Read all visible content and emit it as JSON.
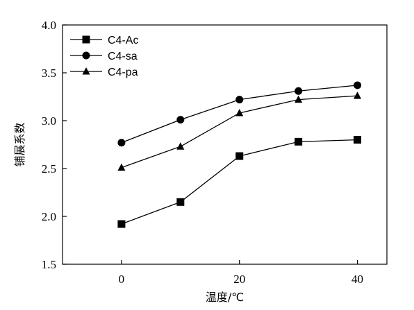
{
  "chart_data": {
    "type": "line",
    "title": "",
    "xlabel": "温度/℃",
    "ylabel": "铺展系数",
    "xlim": [
      -10,
      45
    ],
    "ylim": [
      1.5,
      4.0
    ],
    "xticks": [
      0,
      20,
      40
    ],
    "yticks": [
      1.5,
      2.0,
      2.5,
      3.0,
      3.5,
      4.0
    ],
    "xtick_labels": [
      "0",
      "20",
      "40"
    ],
    "ytick_labels": [
      "1.5",
      "2.0",
      "2.5",
      "3.0",
      "3.5",
      "4.0"
    ],
    "x": [
      0,
      10,
      20,
      30,
      40
    ],
    "grid": false,
    "legend_position": "top-left",
    "series": [
      {
        "name": "C4-Ac",
        "marker": "square",
        "values": [
          1.92,
          2.15,
          2.63,
          2.78,
          2.8
        ]
      },
      {
        "name": "C4-sa",
        "marker": "circle",
        "values": [
          2.77,
          3.01,
          3.22,
          3.31,
          3.37
        ]
      },
      {
        "name": "C4-pa",
        "marker": "triangle",
        "values": [
          2.51,
          2.73,
          3.08,
          3.22,
          3.26
        ]
      }
    ]
  }
}
